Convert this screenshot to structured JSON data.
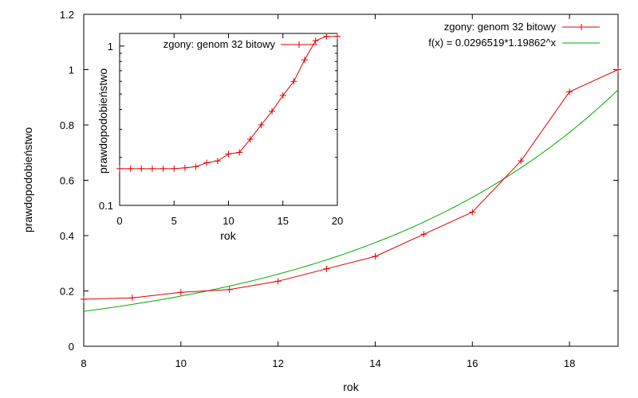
{
  "chart_data": [
    {
      "type": "line",
      "xlabel": "rok",
      "ylabel": "prawdopodobieństwo",
      "xlim": [
        8,
        19
      ],
      "ylim": [
        0,
        1.2
      ],
      "xticks": [
        "8",
        "10",
        "12",
        "14",
        "16",
        "18"
      ],
      "yticks": [
        "0",
        "0.2",
        "0.4",
        "0.6",
        "0.8",
        "1",
        "1.2"
      ],
      "grid": false,
      "legend_position": "top-right",
      "series": [
        {
          "name": "zgony: genom 32 bitowy",
          "color": "#e00000",
          "marker": "plus",
          "x": [
            8,
            9,
            10,
            11,
            12,
            13,
            14,
            15,
            16,
            17,
            18,
            19
          ],
          "y": [
            0.17,
            0.175,
            0.195,
            0.205,
            0.235,
            0.28,
            0.325,
            0.405,
            0.485,
            0.67,
            0.92,
            1.0
          ]
        },
        {
          "name": "f(x) = 0.0296519*1.19862^x",
          "color": "#00aa00",
          "marker": "none",
          "function": {
            "a": 0.0296519,
            "b": 1.19862
          }
        }
      ]
    },
    {
      "type": "line",
      "xlabel": "rok",
      "ylabel": "prawdopodobieństwo",
      "xlim": [
        0,
        20
      ],
      "ylim": [
        0.1,
        1.2
      ],
      "yscale": "log",
      "xticks": [
        "0",
        "5",
        "10",
        "15",
        "20"
      ],
      "yticks": [
        "0.1",
        "1"
      ],
      "grid": false,
      "legend_position": "top-left",
      "series": [
        {
          "name": "zgony: genom 32 bitowy",
          "color": "#e00000",
          "marker": "plus",
          "x": [
            0,
            1,
            2,
            3,
            4,
            5,
            6,
            7,
            8,
            9,
            10,
            11,
            12,
            13,
            14,
            15,
            16,
            17,
            18,
            19,
            20
          ],
          "y": [
            0.17,
            0.17,
            0.17,
            0.17,
            0.17,
            0.17,
            0.172,
            0.175,
            0.185,
            0.19,
            0.21,
            0.215,
            0.26,
            0.32,
            0.39,
            0.49,
            0.6,
            0.82,
            1.08,
            1.15,
            1.15
          ]
        }
      ]
    }
  ]
}
